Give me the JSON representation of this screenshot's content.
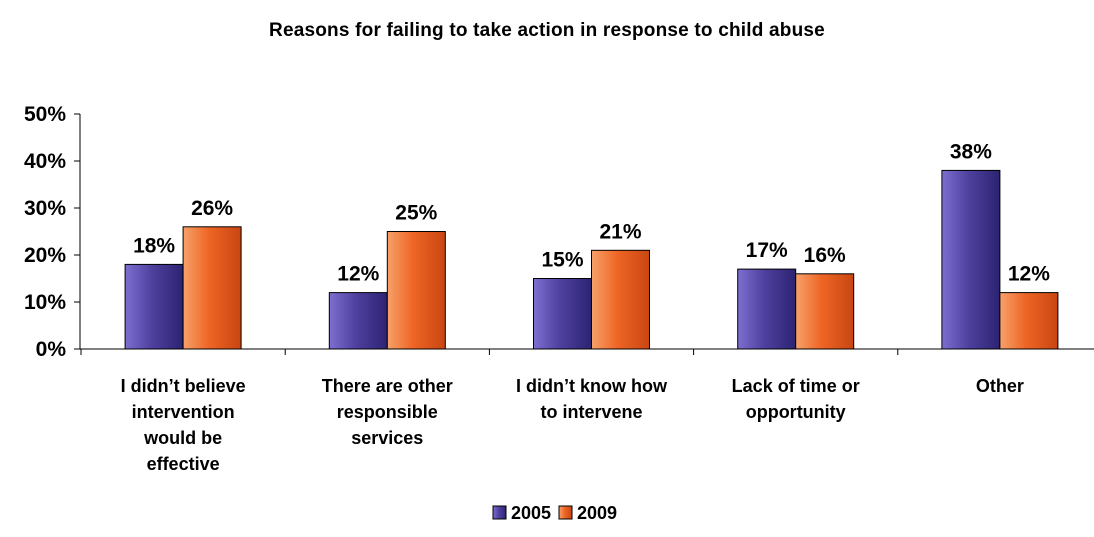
{
  "chart_data": {
    "type": "bar",
    "title": "Reasons for failing to take action in response to child abuse",
    "xlabel": "",
    "ylabel": "",
    "ylim": [
      0,
      50
    ],
    "yticks": [
      "0%",
      "10%",
      "20%",
      "30%",
      "40%",
      "50%"
    ],
    "categories": [
      [
        "I didn’t believe",
        "intervention",
        "would be",
        "effective"
      ],
      [
        "There are other",
        "responsible",
        "services"
      ],
      [
        "I didn’t know how",
        "to intervene"
      ],
      [
        "Lack of time or",
        "opportunity"
      ],
      [
        "Other"
      ]
    ],
    "series": [
      {
        "name": "2005",
        "color": "#5a4ba8",
        "values": [
          18,
          12,
          15,
          17,
          38
        ],
        "labels": [
          "18%",
          "12%",
          "15%",
          "17%",
          "38%"
        ]
      },
      {
        "name": "2009",
        "color": "#ef6a2a",
        "values": [
          26,
          25,
          21,
          16,
          12
        ],
        "labels": [
          "26%",
          "25%",
          "21%",
          "16%",
          "12%"
        ]
      }
    ],
    "legend_position": "bottom",
    "grid": false
  }
}
